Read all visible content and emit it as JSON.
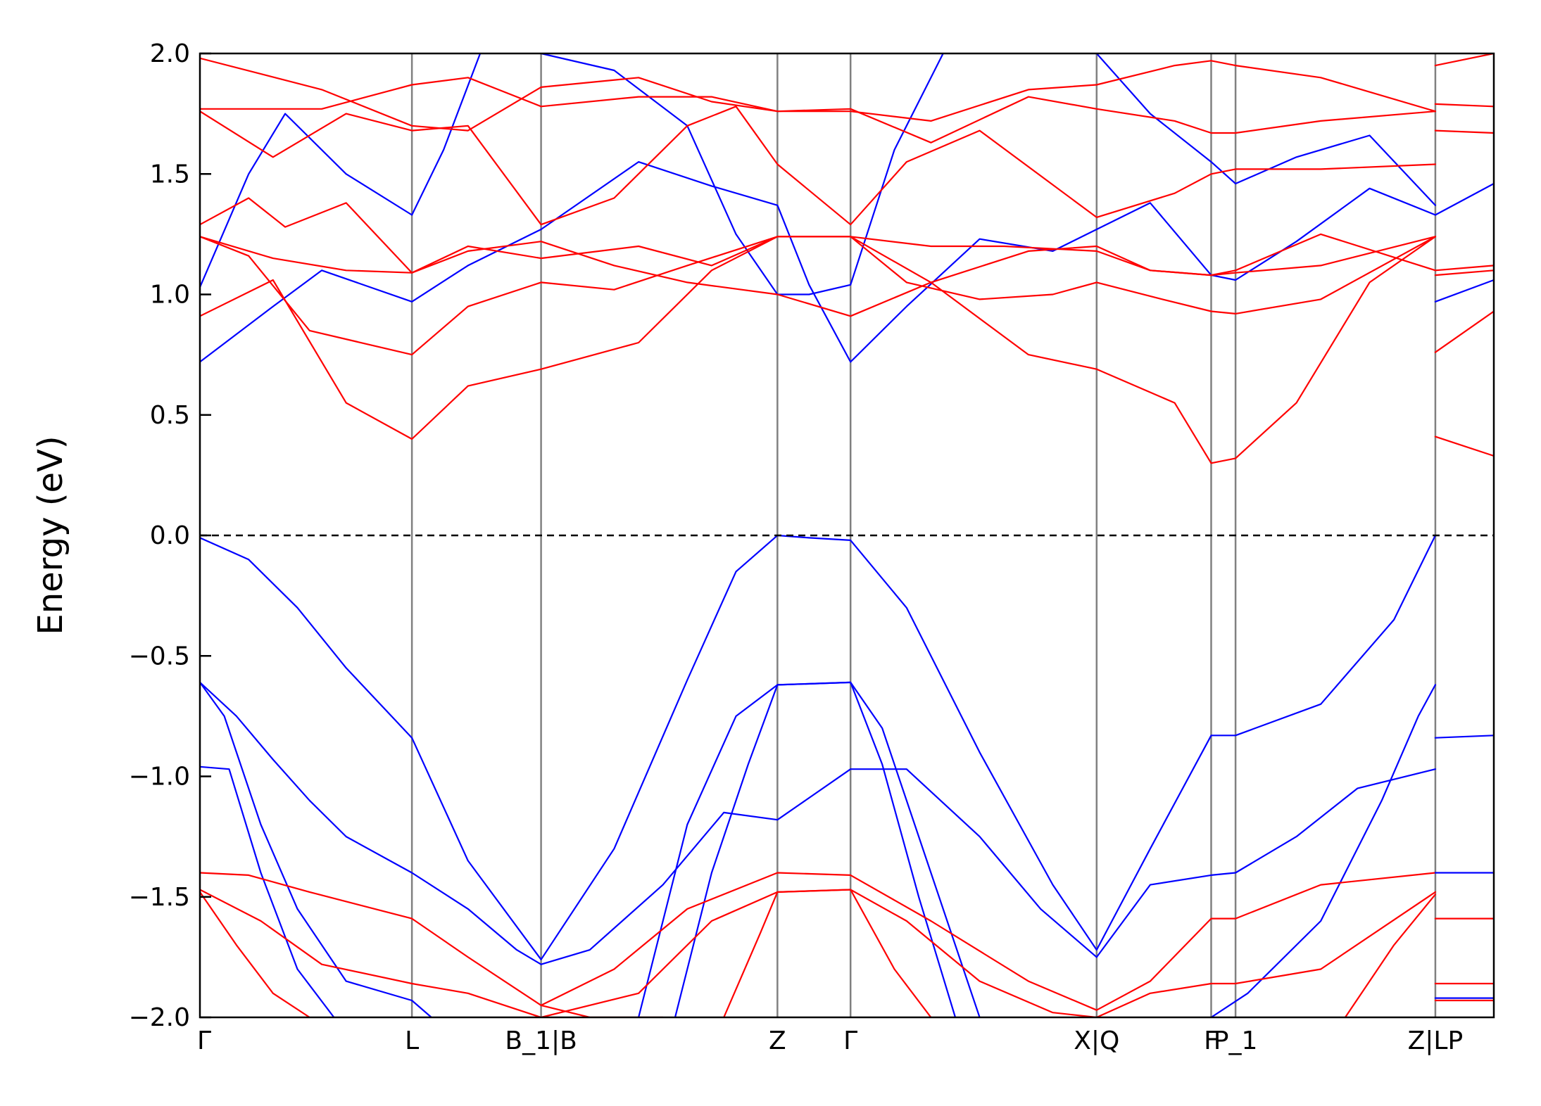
{
  "chart_data": {
    "type": "line",
    "title": "",
    "xlabel": "",
    "ylabel": "Energy (eV)",
    "ylim": [
      -2.0,
      2.0
    ],
    "xlim": [
      0,
      5.31
    ],
    "y_ticks": [
      2.0,
      1.5,
      1.0,
      0.5,
      0.0,
      -0.5,
      -1.0,
      -1.5,
      -2.0
    ],
    "y_tick_labels": [
      "2.0",
      "1.5",
      "1.0",
      "0.5",
      "0.0",
      "−0.5",
      "−1.0",
      "−1.5",
      "−2.0"
    ],
    "fermi_level": 0.0,
    "high_symmetry_points": [
      {
        "label": "Γ",
        "x": 0.0
      },
      {
        "label": "L",
        "x": 0.87
      },
      {
        "label": "B_1|B",
        "x": 1.4
      },
      {
        "label": "Z",
        "x": 2.37
      },
      {
        "label": "Γ",
        "x": 2.67
      },
      {
        "label": "X|Q",
        "x": 3.68
      },
      {
        "label": "F",
        "x": 4.15
      },
      {
        "label": "P_1",
        "x": 4.25
      },
      {
        "label": "Z|LP",
        "x": 5.07
      }
    ],
    "grid": false,
    "legend": "none",
    "series_colors": {
      "spin_up": "#0000ff",
      "spin_down": "#ff0000"
    },
    "series": [
      {
        "color": "#0000ff",
        "x": [
          0,
          0.2,
          0.4,
          0.6,
          0.87,
          1.1,
          1.4,
          1.7,
          2.0,
          2.2,
          2.37,
          2.5,
          2.67,
          2.9,
          3.2,
          3.5,
          3.68,
          3.9,
          4.15,
          4.25,
          4.6,
          4.9,
          5.07
        ],
        "y": [
          -0.01,
          -0.1,
          -0.3,
          -0.55,
          -0.84,
          -1.35,
          -1.76,
          -1.3,
          -0.6,
          -0.15,
          0.0,
          -0.01,
          -0.02,
          -0.3,
          -0.9,
          -1.45,
          -1.72,
          -1.3,
          -0.83,
          -0.83,
          -0.7,
          -0.35,
          0.0
        ]
      },
      {
        "color": "#0000ff",
        "x": [
          0,
          0.15,
          0.3,
          0.45,
          0.6,
          0.87,
          1.1,
          1.3,
          1.4
        ],
        "y": [
          -0.61,
          -0.75,
          -0.93,
          -1.1,
          -1.25,
          -1.4,
          -1.55,
          -1.72,
          -1.78
        ]
      },
      {
        "color": "#0000ff",
        "x": [
          1.4,
          1.6,
          1.9,
          2.15,
          2.37,
          2.67,
          2.9,
          3.2,
          3.45,
          3.68,
          3.9,
          4.15,
          4.25,
          4.5,
          4.75,
          5.07
        ],
        "y": [
          -1.78,
          -1.72,
          -1.45,
          -1.15,
          -1.18,
          -0.97,
          -0.97,
          -1.25,
          -1.55,
          -1.75,
          -1.45,
          -1.41,
          -1.4,
          -1.25,
          -1.05,
          -0.97
        ]
      },
      {
        "color": "#0000ff",
        "x": [
          0,
          0.1,
          0.25,
          0.4,
          0.6,
          0.87,
          0.95
        ],
        "y": [
          -0.61,
          -0.75,
          -1.2,
          -1.55,
          -1.85,
          -1.93,
          -2.0
        ]
      },
      {
        "color": "#0000ff",
        "x": [
          0,
          0.12,
          0.25,
          0.4,
          0.55
        ],
        "y": [
          -0.96,
          -0.97,
          -1.4,
          -1.8,
          -2.0
        ]
      },
      {
        "color": "#0000ff",
        "x": [
          1.8,
          2.0,
          2.2,
          2.37,
          2.67,
          2.8,
          3.0,
          3.2
        ],
        "y": [
          -2.0,
          -1.2,
          -0.75,
          -0.62,
          -0.61,
          -0.8,
          -1.4,
          -2.0
        ]
      },
      {
        "color": "#0000ff",
        "x": [
          1.95,
          2.1,
          2.25,
          2.37,
          2.67,
          2.8,
          2.95,
          3.1
        ],
        "y": [
          -2.0,
          -1.4,
          -0.95,
          -0.62,
          -0.61,
          -0.95,
          -1.5,
          -2.0
        ]
      },
      {
        "color": "#0000ff",
        "x": [
          4.15,
          4.3,
          4.6,
          4.85,
          5.0,
          5.07
        ],
        "y": [
          -2.0,
          -1.9,
          -1.6,
          -1.1,
          -0.75,
          -0.62
        ]
      },
      {
        "color": "#0000ff",
        "x": [
          0,
          0.3,
          0.5,
          0.87,
          1.1,
          1.4,
          1.8,
          2.1,
          2.37,
          2.5,
          2.67,
          2.9,
          3.2,
          3.5,
          3.68,
          3.9,
          4.15,
          4.25,
          4.5,
          4.8,
          5.07
        ],
        "y": [
          0.72,
          0.95,
          1.1,
          0.97,
          1.12,
          1.27,
          1.55,
          1.45,
          1.37,
          1.04,
          0.72,
          0.95,
          1.23,
          1.18,
          1.27,
          1.38,
          1.08,
          1.06,
          1.22,
          1.44,
          1.33
        ]
      },
      {
        "color": "#0000ff",
        "x": [
          0,
          0.2,
          0.35,
          0.6,
          0.87,
          1.0,
          1.15
        ],
        "y": [
          1.03,
          1.5,
          1.75,
          1.5,
          1.33,
          1.6,
          2.0
        ]
      },
      {
        "color": "#0000ff",
        "x": [
          1.4,
          1.7,
          2.0,
          2.2,
          2.37,
          2.5,
          2.67,
          2.85,
          3.05
        ],
        "y": [
          2.0,
          1.93,
          1.7,
          1.25,
          1.0,
          1.0,
          1.04,
          1.6,
          2.0
        ]
      },
      {
        "color": "#0000ff",
        "x": [
          3.68,
          3.9,
          4.15,
          4.25,
          4.5,
          4.8,
          5.07
        ],
        "y": [
          2.0,
          1.75,
          1.55,
          1.46,
          1.57,
          1.66,
          1.37
        ]
      },
      {
        "color": "#ff0000",
        "x": [
          0,
          0.3,
          0.6,
          0.87,
          1.1,
          1.4,
          1.8,
          2.1,
          2.37,
          2.67,
          3.0,
          3.4,
          3.68,
          4.0,
          4.15,
          4.25,
          4.5,
          4.8,
          5.07
        ],
        "y": [
          0.91,
          1.06,
          0.55,
          0.4,
          0.62,
          0.69,
          0.8,
          1.1,
          1.24,
          1.24,
          1.05,
          0.75,
          0.69,
          0.55,
          0.3,
          0.32,
          0.55,
          1.05,
          1.24
        ]
      },
      {
        "color": "#ff0000",
        "x": [
          0,
          0.2,
          0.45,
          0.87,
          1.1,
          1.4,
          1.7,
          2.0,
          2.37,
          2.67,
          2.9,
          3.2,
          3.5,
          3.68,
          3.95,
          4.15,
          4.25,
          4.6,
          5.07
        ],
        "y": [
          1.24,
          1.16,
          0.85,
          0.75,
          0.95,
          1.05,
          1.02,
          1.12,
          1.24,
          1.24,
          1.05,
          0.98,
          1.0,
          1.05,
          0.98,
          0.93,
          0.92,
          0.98,
          1.24
        ]
      },
      {
        "color": "#ff0000",
        "x": [
          0,
          0.3,
          0.6,
          0.87,
          1.1,
          1.4,
          1.8,
          2.1,
          2.37,
          2.67,
          3.0,
          3.3,
          3.68,
          3.9,
          4.15,
          4.25,
          4.6,
          5.07
        ],
        "y": [
          1.24,
          1.15,
          1.1,
          1.09,
          1.2,
          1.15,
          1.2,
          1.12,
          1.24,
          1.24,
          1.2,
          1.2,
          1.18,
          1.1,
          1.08,
          1.09,
          1.12,
          1.24
        ]
      },
      {
        "color": "#ff0000",
        "x": [
          0,
          0.2,
          0.35,
          0.6,
          0.87,
          1.1,
          1.4,
          1.7,
          2.0,
          2.37,
          2.67,
          3.0,
          3.4,
          3.68,
          3.9,
          4.15,
          4.25,
          4.6,
          5.07
        ],
        "y": [
          1.29,
          1.4,
          1.28,
          1.38,
          1.09,
          1.18,
          1.22,
          1.12,
          1.05,
          1.0,
          0.91,
          1.05,
          1.18,
          1.2,
          1.1,
          1.08,
          1.1,
          1.25,
          1.1
        ]
      },
      {
        "color": "#ff0000",
        "x": [
          0,
          0.3,
          0.6,
          0.87,
          1.1,
          1.4,
          1.7,
          2.0,
          2.2,
          2.37,
          2.67,
          2.9,
          3.2,
          3.68,
          4.0,
          4.15,
          4.25,
          4.6,
          5.07
        ],
        "y": [
          1.76,
          1.57,
          1.75,
          1.68,
          1.7,
          1.29,
          1.4,
          1.7,
          1.78,
          1.54,
          1.29,
          1.55,
          1.68,
          1.32,
          1.42,
          1.5,
          1.52,
          1.52,
          1.54
        ]
      },
      {
        "color": "#ff0000",
        "x": [
          0,
          0.5,
          0.87,
          1.1,
          1.4,
          1.8,
          2.1,
          2.37,
          2.67,
          3.0,
          3.4,
          3.68,
          4.0,
          4.15,
          4.25,
          4.6,
          5.07
        ],
        "y": [
          1.77,
          1.77,
          1.87,
          1.9,
          1.78,
          1.82,
          1.82,
          1.76,
          1.77,
          1.63,
          1.82,
          1.77,
          1.72,
          1.67,
          1.67,
          1.72,
          1.76
        ]
      },
      {
        "color": "#ff0000",
        "x": [
          0,
          0.5,
          0.87,
          1.1,
          1.4,
          1.8,
          2.1,
          2.37,
          2.67,
          3.0,
          3.4,
          3.68,
          4.0,
          4.15,
          4.25,
          4.6,
          5.07
        ],
        "y": [
          1.98,
          1.85,
          1.7,
          1.68,
          1.86,
          1.9,
          1.8,
          1.76,
          1.76,
          1.72,
          1.85,
          1.87,
          1.95,
          1.97,
          1.95,
          1.9,
          1.76
        ]
      },
      {
        "color": "#ff0000",
        "x": [
          0,
          0.2,
          0.45,
          0.87,
          1.1,
          1.4,
          1.6,
          1.9
        ],
        "y": [
          -1.4,
          -1.41,
          -1.48,
          -1.59,
          -1.75,
          -1.95,
          -2.0,
          -2.0
        ]
      },
      {
        "color": "#ff0000",
        "x": [
          1.4,
          1.7,
          2.0,
          2.37,
          2.67,
          3.0,
          3.4,
          3.68,
          3.9,
          4.15,
          4.25,
          4.6,
          5.07
        ],
        "y": [
          -1.95,
          -1.8,
          -1.55,
          -1.4,
          -1.41,
          -1.6,
          -1.85,
          -1.97,
          -1.85,
          -1.59,
          -1.59,
          -1.45,
          -1.4
        ]
      },
      {
        "color": "#ff0000",
        "x": [
          0,
          0.25,
          0.5,
          0.87,
          1.1,
          1.4,
          1.8,
          2.1,
          2.37,
          2.67,
          2.9,
          3.2,
          3.5,
          3.68
        ],
        "y": [
          -1.47,
          -1.6,
          -1.78,
          -1.86,
          -1.9,
          -2.0,
          -1.9,
          -1.6,
          -1.48,
          -1.47,
          -1.6,
          -1.85,
          -1.98,
          -2.0
        ]
      },
      {
        "color": "#ff0000",
        "x": [
          3.68,
          3.9,
          4.15,
          4.25,
          4.6,
          5.07
        ],
        "y": [
          -2.0,
          -1.9,
          -1.86,
          -1.86,
          -1.8,
          -1.48
        ]
      },
      {
        "color": "#ff0000",
        "x": [
          0,
          0.15,
          0.3,
          0.45
        ],
        "y": [
          -1.48,
          -1.7,
          -1.9,
          -2.0
        ]
      },
      {
        "color": "#ff0000",
        "x": [
          2.15,
          2.3,
          2.37,
          2.67,
          2.85,
          3.0
        ],
        "y": [
          -2.0,
          -1.65,
          -1.48,
          -1.47,
          -1.8,
          -2.0
        ]
      },
      {
        "color": "#ff0000",
        "x": [
          4.7,
          4.9,
          5.07
        ],
        "y": [
          -2.0,
          -1.7,
          -1.49
        ]
      },
      {
        "color": "#0000ff",
        "x": [
          5.07,
          5.31
        ],
        "y": [
          -0.84,
          -0.83
        ]
      },
      {
        "color": "#0000ff",
        "x": [
          5.07,
          5.31
        ],
        "y": [
          -1.4,
          -1.4
        ]
      },
      {
        "color": "#0000ff",
        "x": [
          5.07,
          5.31
        ],
        "y": [
          -1.92,
          -1.92
        ]
      },
      {
        "color": "#0000ff",
        "x": [
          5.07,
          5.31
        ],
        "y": [
          0.97,
          1.06
        ]
      },
      {
        "color": "#0000ff",
        "x": [
          5.07,
          5.31
        ],
        "y": [
          1.33,
          1.46
        ]
      },
      {
        "color": "#ff0000",
        "x": [
          5.07,
          5.31
        ],
        "y": [
          0.41,
          0.33
        ]
      },
      {
        "color": "#ff0000",
        "x": [
          5.07,
          5.31
        ],
        "y": [
          0.76,
          0.93
        ]
      },
      {
        "color": "#ff0000",
        "x": [
          5.07,
          5.31
        ],
        "y": [
          1.08,
          1.1
        ]
      },
      {
        "color": "#ff0000",
        "x": [
          5.07,
          5.31
        ],
        "y": [
          1.1,
          1.12
        ]
      },
      {
        "color": "#ff0000",
        "x": [
          5.07,
          5.31
        ],
        "y": [
          1.68,
          1.67
        ]
      },
      {
        "color": "#ff0000",
        "x": [
          5.07,
          5.31
        ],
        "y": [
          1.79,
          1.78
        ]
      },
      {
        "color": "#ff0000",
        "x": [
          5.07,
          5.31
        ],
        "y": [
          1.95,
          2.0
        ]
      },
      {
        "color": "#ff0000",
        "x": [
          5.07,
          5.31
        ],
        "y": [
          -1.59,
          -1.59
        ]
      },
      {
        "color": "#ff0000",
        "x": [
          5.07,
          5.31
        ],
        "y": [
          -1.86,
          -1.86
        ]
      },
      {
        "color": "#ff0000",
        "x": [
          5.07,
          5.31
        ],
        "y": [
          -1.93,
          -1.93
        ]
      }
    ]
  }
}
